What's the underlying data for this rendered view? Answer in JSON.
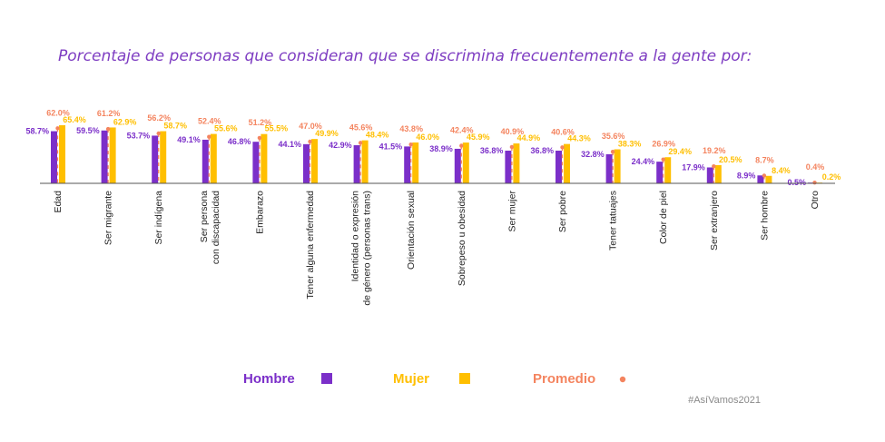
{
  "chart_data": {
    "type": "bar",
    "title": "Porcentaje de personas que consideran que se discrimina frecuentemente a la gente por:",
    "categories": [
      [
        "Edad"
      ],
      [
        "Ser migrante"
      ],
      [
        "Ser indígena"
      ],
      [
        "Ser persona",
        "con discapacidad"
      ],
      [
        "Embarazo"
      ],
      [
        "Tener alguna enfermedad"
      ],
      [
        "Identidad o expresión",
        "de género (personas trans)"
      ],
      [
        "Orientación sexual"
      ],
      [
        "Sobrepeso u obesidad"
      ],
      [
        "Ser mujer"
      ],
      [
        "Ser pobre"
      ],
      [
        "Tener tatuajes"
      ],
      [
        "Color de piel"
      ],
      [
        "Ser extranjero"
      ],
      [
        "Ser hombre"
      ],
      [
        "Otro"
      ]
    ],
    "series": [
      {
        "name": "Hombre",
        "key": "hombre",
        "color": "#7b2fc9",
        "values": [
          58.7,
          59.5,
          53.7,
          49.1,
          46.8,
          44.1,
          42.9,
          41.5,
          38.9,
          36.8,
          36.8,
          32.8,
          24.4,
          17.9,
          8.9,
          0.5
        ],
        "labels": [
          "58.7%",
          "59.5%",
          "53.7%",
          "49.1%",
          "46.8%",
          "44.1%",
          "42.9%",
          "41.5%",
          "38.9%",
          "36.8%",
          "36.8%",
          "32.8%",
          "24.4%",
          "17.9%",
          "8.9%",
          "0.5%"
        ]
      },
      {
        "name": "Mujer",
        "key": "mujer",
        "color": "#ffbf00",
        "values": [
          65.4,
          62.9,
          58.7,
          55.6,
          55.5,
          49.9,
          48.4,
          46.0,
          45.9,
          44.9,
          44.3,
          38.3,
          29.4,
          20.5,
          8.4,
          0.2
        ],
        "labels": [
          "65.4%",
          "62.9%",
          "58.7%",
          "55.6%",
          "55.5%",
          "49.9%",
          "48.4%",
          "46.0%",
          "45.9%",
          "44.9%",
          "44.3%",
          "38.3%",
          "29.4%",
          "20.5%",
          "8.4%",
          "0.2%"
        ]
      },
      {
        "name": "Promedio",
        "key": "promedio",
        "color": "#f4845f",
        "values": [
          62.0,
          61.2,
          56.2,
          52.4,
          51.2,
          47.0,
          45.6,
          43.8,
          42.4,
          40.9,
          40.6,
          35.6,
          26.9,
          19.2,
          8.7,
          0.4
        ],
        "labels": [
          "62.0%",
          "61.2%",
          "56.2%",
          "52.4%",
          "51.2%",
          "47.0%",
          "45.6%",
          "43.8%",
          "42.4%",
          "40.9%",
          "40.6%",
          "35.6%",
          "26.9%",
          "19.2%",
          "8.7%",
          "0.4%"
        ]
      }
    ],
    "ylim": [
      0,
      65.4
    ],
    "legend": [
      "Hombre",
      "Mujer",
      "Promedio"
    ],
    "legend_position": "bottom",
    "hashtag": "#AsíVamos2021"
  }
}
